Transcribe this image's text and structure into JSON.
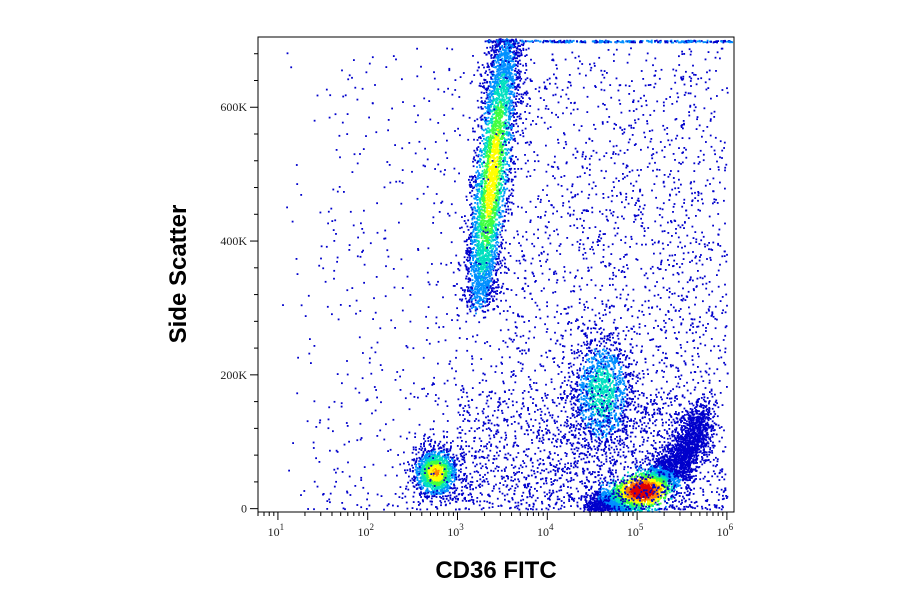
{
  "chart_data": {
    "type": "scatter",
    "subtype": "flow-cytometry-density-dot-plot",
    "title": "",
    "xlabel": "CD36 FITC",
    "ylabel": "Side Scatter",
    "x_scale": "log",
    "y_scale": "linear",
    "xlim": [
      6,
      1200000
    ],
    "ylim": [
      -5000,
      705000
    ],
    "grid": false,
    "legend": "none",
    "x_ticks": [
      {
        "value": 10,
        "base": "10",
        "exp": "1"
      },
      {
        "value": 100,
        "base": "10",
        "exp": "2"
      },
      {
        "value": 1000,
        "base": "10",
        "exp": "3"
      },
      {
        "value": 10000,
        "base": "10",
        "exp": "4"
      },
      {
        "value": 100000,
        "base": "10",
        "exp": "5"
      },
      {
        "value": 1000000,
        "base": "10",
        "exp": "6"
      }
    ],
    "y_ticks": [
      {
        "value": 0,
        "label": "0"
      },
      {
        "value": 200000,
        "label": "200K"
      },
      {
        "value": 400000,
        "label": "400K"
      },
      {
        "value": 600000,
        "label": "600K"
      }
    ],
    "density_colors": [
      "#0000cc",
      "#0090ff",
      "#00e0c0",
      "#40ff40",
      "#ffff00",
      "#ff8000",
      "#e00000"
    ],
    "populations": [
      {
        "id": "granulocytes",
        "x_log_center": 3.38,
        "x_log_spread": 0.1,
        "y_low": 310000,
        "y_high": 700000,
        "x_slope_per_100k": 0.08,
        "peak_density": 0.65
      },
      {
        "id": "lymphocytes",
        "x_log_center": 2.75,
        "x_log_spread": 0.12,
        "y_center": 55000,
        "y_spread": 18000,
        "peak_density": 0.72
      },
      {
        "id": "monocytes",
        "x_log_center": 4.6,
        "x_log_spread": 0.18,
        "y_center": 175000,
        "y_spread": 45000,
        "peak_density": 0.38
      },
      {
        "id": "platelets",
        "x_log_start": 4.5,
        "x_log_end": 5.75,
        "y_start": 8000,
        "y_end": 130000,
        "peak_x_log": 5.05,
        "peak_density": 1.0
      }
    ]
  }
}
